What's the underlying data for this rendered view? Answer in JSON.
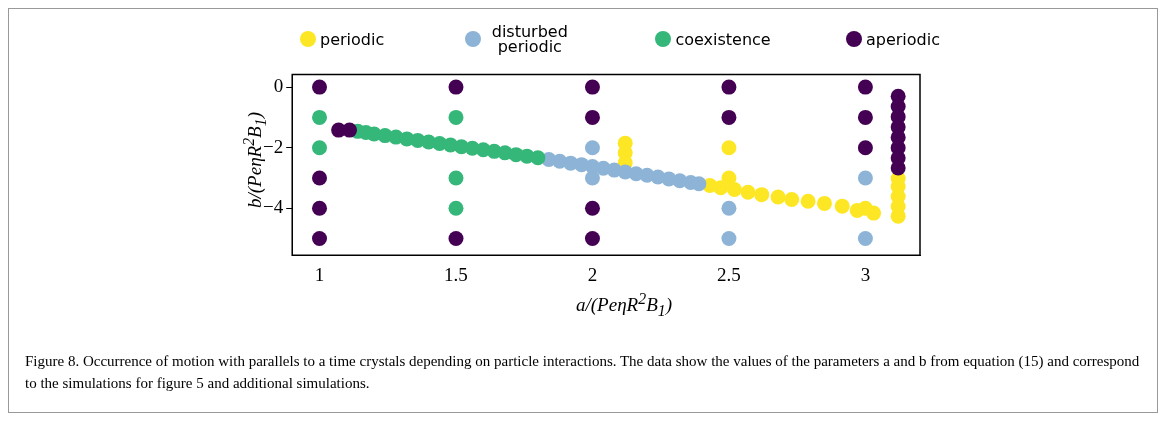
{
  "chart_data": {
    "type": "scatter",
    "xlabel": "a/(PeηR$^{2}$B$_{1}$)",
    "ylabel": "b/(PeηR$^{2}$B$_{1}$)",
    "xlim": [
      0.9,
      3.2
    ],
    "ylim": [
      -5.55,
      0.42
    ],
    "xticks": [
      1,
      1.5,
      2,
      2.5,
      3
    ],
    "yticks": [
      0,
      -2,
      -4
    ],
    "grid": false,
    "legend": "top",
    "marker": "circle",
    "annotations": [
      "Figure 8. Occurrence of motion with parallels to a time crystals depending on particle interactions. The data show the values of the parameters a and b from equation (15) and correspond to the simulations for figure 5 and additional simulations."
    ],
    "series": [
      {
        "name": "periodic",
        "color": "#fde725",
        "x": [
          2.5,
          2.5,
          2.12,
          2.12,
          2.12,
          2.43,
          2.47,
          2.52,
          2.57,
          2.62,
          2.68,
          2.73,
          2.79,
          2.85,
          2.915,
          2.97,
          3.03,
          3,
          3.12,
          3.12,
          3.12,
          3.12,
          3.12
        ],
        "values": [
          -2,
          -3,
          -1.85,
          -2.17,
          -2.5,
          -3.25,
          -3.32,
          -3.38,
          -3.47,
          -3.55,
          -3.63,
          -3.71,
          -3.77,
          -3.84,
          -3.93,
          -4.07,
          -4.16,
          -4,
          -3.02,
          -3.28,
          -3.61,
          -3.94,
          -4.26
        ]
      },
      {
        "name": "disturbed periodic",
        "color": "#8db4d6",
        "x": [
          2,
          2,
          2.5,
          2.5,
          3,
          3,
          1.84,
          1.88,
          1.92,
          1.96,
          2,
          2.04,
          2.08,
          2.12,
          2.16,
          2.2,
          2.24,
          2.28,
          2.32,
          2.36,
          2.39
        ],
        "values": [
          -2,
          -3,
          -4,
          -5,
          -3,
          -5,
          -2.39,
          -2.45,
          -2.51,
          -2.56,
          -2.62,
          -2.68,
          -2.74,
          -2.8,
          -2.86,
          -2.91,
          -2.97,
          -3.03,
          -3.09,
          -3.15,
          -3.19
        ]
      },
      {
        "name": "coexistence",
        "color": "#35b779",
        "x": [
          1,
          1,
          1.5,
          1.5,
          1.5,
          1.14,
          1.17,
          1.2,
          1.24,
          1.28,
          1.32,
          1.36,
          1.4,
          1.44,
          1.48,
          1.52,
          1.56,
          1.6,
          1.64,
          1.68,
          1.72,
          1.76,
          1.8
        ],
        "values": [
          -1,
          -2,
          -1,
          -3,
          -4,
          -1.46,
          -1.5,
          -1.55,
          -1.6,
          -1.65,
          -1.71,
          -1.76,
          -1.81,
          -1.86,
          -1.91,
          -1.97,
          -2.02,
          -2.07,
          -2.12,
          -2.17,
          -2.23,
          -2.28,
          -2.33
        ]
      },
      {
        "name": "aperiodic",
        "color": "#440154",
        "x": [
          1,
          1,
          1,
          1,
          1.5,
          1.5,
          2,
          2,
          2,
          2,
          2.5,
          2.5,
          3,
          3,
          3,
          1.07,
          1.11,
          3.12,
          3.12,
          3.12,
          3.12,
          3.12,
          3.12,
          3.12,
          3.12
        ],
        "values": [
          0,
          -3,
          -4,
          -5,
          0,
          -5,
          0,
          -1,
          -4,
          -5,
          0,
          -1,
          0,
          -1,
          -2,
          -1.42,
          -1.42,
          -0.3,
          -0.64,
          -0.98,
          -1.32,
          -1.66,
          -2,
          -2.34,
          -2.67
        ]
      }
    ]
  }
}
